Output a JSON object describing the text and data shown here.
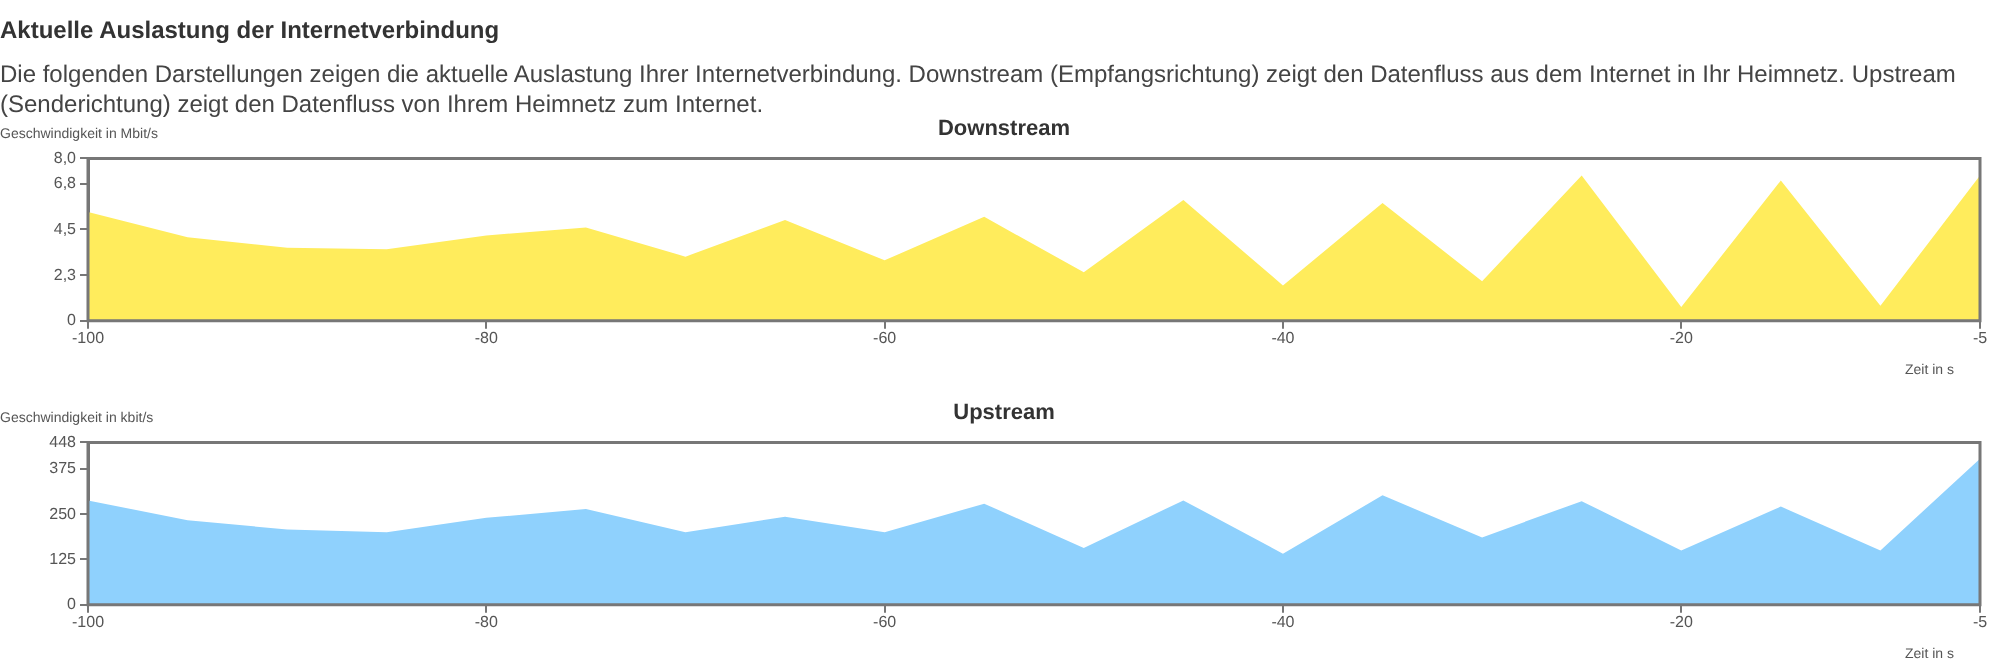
{
  "chart_data": [
    {
      "type": "area",
      "title": "Downstream",
      "ylabel": "Geschwindigkeit in Mbit/s",
      "xlabel": "Zeit in s",
      "annotations": [
        "Aktuelle Auslastung der Internetverbindung",
        "Die folgenden Darstellungen zeigen die aktuelle Auslastung Ihrer Internetverbindung. Downstream (Empfangsrichtung) zeigt den Datenfluss aus dem Internet in Ihr Heimnetz. Upstream (Senderichtung) zeigt den Datenfluss von Ihrem Heimnetz zum Internet."
      ],
      "x": [
        -100,
        -95,
        -90,
        -85,
        -80,
        -75,
        -70,
        -65,
        -60,
        -55,
        -50,
        -45,
        -40,
        -35,
        -30,
        -25,
        -20,
        -15,
        -10,
        -5
      ],
      "series": [
        {
          "color": "#ffec5c",
          "values": [
            5.36,
            4.12,
            3.6,
            3.53,
            4.2,
            4.6,
            3.16,
            4.96,
            2.98,
            5.12,
            2.39,
            5.95,
            1.74,
            5.8,
            1.95,
            7.16,
            0.68,
            6.91,
            0.74,
            7.16
          ]
        }
      ],
      "xlim": [
        -100,
        -5
      ],
      "xticks": [
        -100,
        -80,
        -60,
        -40,
        -20,
        -5
      ],
      "ylim": [
        0,
        8
      ],
      "yticks": [
        0,
        {
          "value": 2.25,
          "label": "2,3"
        },
        {
          "value": 4.5,
          "label": "4,5"
        },
        {
          "value": 6.75,
          "label": "6,8"
        },
        {
          "value": 8,
          "label": "8,0"
        }
      ],
      "grid": false,
      "legend": false
    },
    {
      "type": "area",
      "title": "Upstream",
      "ylabel": "Geschwindigkeit in kbit/s",
      "xlabel": "Zeit in s",
      "x": [
        -100,
        -95,
        -90,
        -85,
        -80,
        -75,
        -70,
        -65,
        -60,
        -55,
        -50,
        -45,
        -40,
        -35,
        -30,
        -25,
        -20,
        -15,
        -10,
        -5
      ],
      "series": [
        {
          "color": "#8fd1fd",
          "values": [
            288,
            233,
            208,
            200,
            240,
            264,
            200,
            243,
            200,
            279,
            157,
            288,
            141,
            302,
            186,
            286,
            150,
            271,
            150,
            403
          ]
        }
      ],
      "xlim": [
        -100,
        -5
      ],
      "xticks": [
        -100,
        -80,
        -60,
        -40,
        -20,
        -5
      ],
      "ylim": [
        0,
        448
      ],
      "yticks": [
        0,
        125,
        250,
        375,
        448
      ],
      "grid": false,
      "legend": false
    }
  ]
}
